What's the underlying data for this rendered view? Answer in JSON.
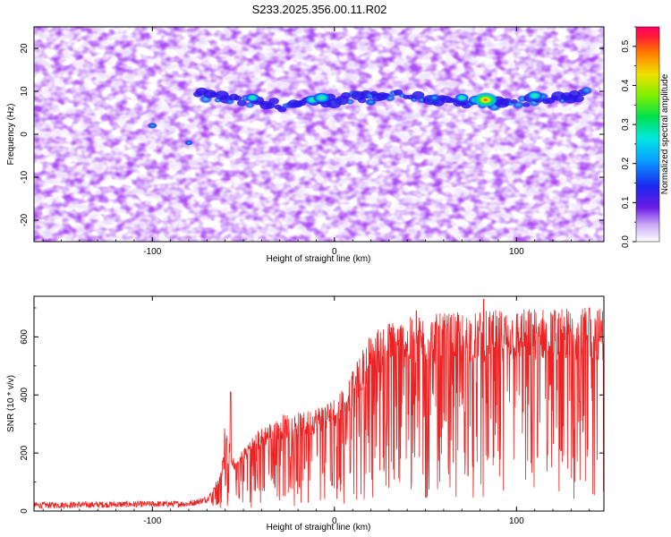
{
  "figure": {
    "title": "S233.2025.356.00.11.R02"
  },
  "chart_data": [
    {
      "type": "heatmap",
      "xlabel": "Height of straight line (km)",
      "ylabel": "Frequency (Hz)",
      "xlim": [
        -165,
        148
      ],
      "ylim": [
        -25,
        25
      ],
      "xticks": [
        -100,
        0,
        100
      ],
      "yticks": [
        -20,
        -10,
        0,
        10,
        20
      ],
      "colorbar": {
        "label": "Normalized spectral amplitude",
        "range": [
          0,
          0.55
        ],
        "ticks": [
          0.0,
          0.1,
          0.2,
          0.3,
          0.4,
          0.5
        ],
        "colormap": "rainbow",
        "low_color": "#ffffff",
        "high_color": "#ff0066"
      },
      "signal_band": {
        "x_start": -75,
        "x_end": 140,
        "freq_hz": 8,
        "peak_x": 83,
        "peak_value": 0.45
      },
      "grid": false
    },
    {
      "type": "line",
      "xlabel": "Height of straight line (km)",
      "ylabel": "SNR (10 * v/v)",
      "xlim": [
        -165,
        148
      ],
      "ylim": [
        0,
        740
      ],
      "xticks": [
        -100,
        0,
        100
      ],
      "yticks": [
        0,
        200,
        400,
        600
      ],
      "series": [
        {
          "color": "#ee2222",
          "envelope": {
            "x": [
              -165,
              -80,
              -70,
              -62,
              -60,
              -55,
              -45,
              -30,
              -15,
              0,
              10,
              20,
              30,
              50,
              80,
              110,
              148
            ],
            "y": [
              20,
              25,
              40,
              120,
              280,
              150,
              230,
              290,
              300,
              340,
              420,
              540,
              570,
              590,
              600,
              610,
              610
            ]
          },
          "peak_values": [
            {
              "x": -57,
              "y": 410
            },
            {
              "x": 45,
              "y": 690
            },
            {
              "x": 82,
              "y": 730
            },
            {
              "x": 140,
              "y": 700
            }
          ]
        }
      ],
      "grid": false
    }
  ]
}
